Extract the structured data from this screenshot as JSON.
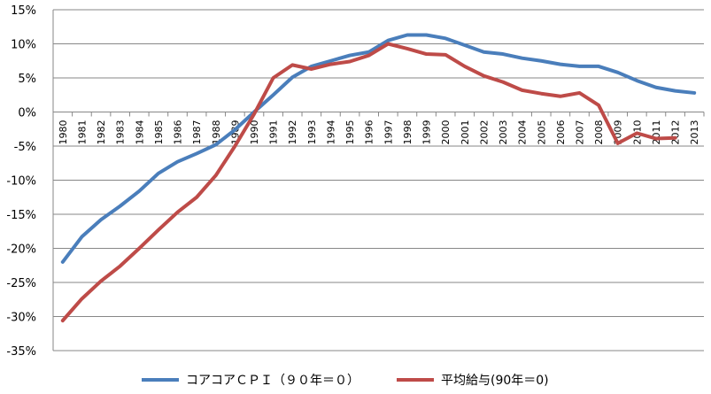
{
  "chart_data": {
    "type": "line",
    "title": "",
    "xlabel": "",
    "ylabel": "",
    "ylim": [
      -35,
      15
    ],
    "y_tick_step": 5,
    "y_tick_suffix": "%",
    "grid": "horizontal",
    "legend_position": "bottom",
    "categories": [
      "1980",
      "1981",
      "1982",
      "1983",
      "1984",
      "1985",
      "1986",
      "1987",
      "1988",
      "1989",
      "1990",
      "1991",
      "1992",
      "1993",
      "1994",
      "1995",
      "1996",
      "1997",
      "1998",
      "1999",
      "2000",
      "2001",
      "2002",
      "2003",
      "2004",
      "2005",
      "2006",
      "2007",
      "2008",
      "2009",
      "2010",
      "2011",
      "2012",
      "2013"
    ],
    "series": [
      {
        "name": "コアコアＣＰＩ（９０年＝０）",
        "color": "#4a7ebb",
        "values": [
          -22.0,
          -18.3,
          -15.8,
          -13.8,
          -11.6,
          -9.0,
          -7.3,
          -6.1,
          -4.8,
          -2.6,
          0.0,
          2.5,
          5.1,
          6.7,
          7.5,
          8.3,
          8.8,
          10.5,
          11.3,
          11.3,
          10.8,
          9.8,
          8.8,
          8.5,
          7.9,
          7.5,
          7.0,
          6.7,
          6.7,
          5.8,
          4.6,
          3.6,
          3.1,
          2.8
        ]
      },
      {
        "name": "平均給与(90年＝0)",
        "color": "#be4b48",
        "values": [
          -30.6,
          -27.4,
          -24.8,
          -22.6,
          -20.0,
          -17.3,
          -14.7,
          -12.5,
          -9.3,
          -5.0,
          -0.3,
          5.0,
          6.9,
          6.3,
          7.0,
          7.4,
          8.3,
          10.0,
          9.3,
          8.5,
          8.4,
          6.7,
          5.3,
          4.4,
          3.2,
          2.7,
          2.3,
          2.8,
          1.0,
          -4.6,
          -3.1,
          -3.9,
          -3.8,
          null
        ]
      }
    ]
  }
}
